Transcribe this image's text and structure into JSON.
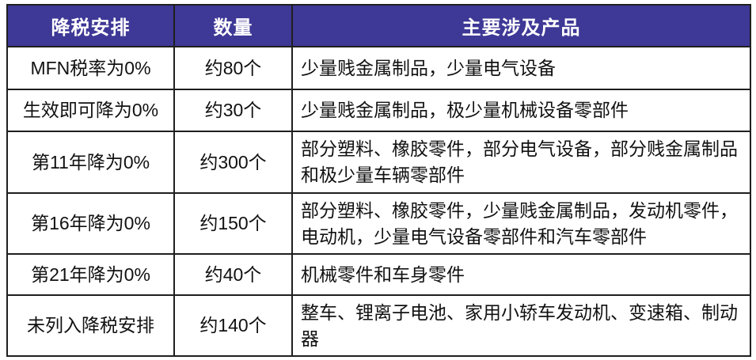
{
  "colors": {
    "header_background": "#3e3896",
    "header_text": "#ffffff",
    "grid_border": "#1f1f1f",
    "cell_background": "#ffffff",
    "cell_text": "#111111"
  },
  "table": {
    "headers": {
      "arrangement": "降税安排",
      "quantity": "数量",
      "products": "主要涉及产品"
    },
    "rows": [
      {
        "arrangement": "MFN税率为0%",
        "quantity": "约80个",
        "products": "少量贱金属制品，少量电气设备"
      },
      {
        "arrangement": "生效即可降为0%",
        "quantity": "约30个",
        "products": "少量贱金属制品，极少量机械设备零部件"
      },
      {
        "arrangement": "第11年降为0%",
        "quantity": "约300个",
        "products": "部分塑料、橡胶零件，部分电气设备，部分贱金属制品和极少量车辆零部件"
      },
      {
        "arrangement": "第16年降为0%",
        "quantity": "约150个",
        "products": "部分塑料、橡胶零件，少量贱金属制品，发动机零件，电动机，少量电气设备零部件和汽车零部件"
      },
      {
        "arrangement": "第21年降为0%",
        "quantity": "约40个",
        "products": "机械零件和车身零件"
      },
      {
        "arrangement": "未列入降税安排",
        "quantity": "约140个",
        "products": "整车、锂离子电池、家用小轿车发动机、变速箱、制动器"
      }
    ]
  },
  "chart_data": {
    "type": "table",
    "title": "",
    "columns": [
      "降税安排",
      "数量",
      "主要涉及产品"
    ],
    "rows": [
      [
        "MFN税率为0%",
        "约80个",
        "少量贱金属制品，少量电气设备"
      ],
      [
        "生效即可降为0%",
        "约30个",
        "少量贱金属制品，极少量机械设备零部件"
      ],
      [
        "第11年降为0%",
        "约300个",
        "部分塑料、橡胶零件，部分电气设备，部分贱金属制品和极少量车辆零部件"
      ],
      [
        "第16年降为0%",
        "约150个",
        "部分塑料、橡胶零件，少量贱金属制品，发动机零件，电动机，少量电气设备零部件和汽车零部件"
      ],
      [
        "第21年降为0%",
        "约40个",
        "机械零件和车身零件"
      ],
      [
        "未列入降税安排",
        "约140个",
        "整车、锂离子电池、家用小轿车发动机、变速箱、制动器"
      ]
    ],
    "approx_quantities": [
      80,
      30,
      300,
      150,
      40,
      140
    ],
    "layout_hints": {
      "header_style": "dark-indigo background, white bold centered text",
      "first_two_columns_align": "center",
      "third_column_align": "left",
      "grid": "on"
    }
  }
}
